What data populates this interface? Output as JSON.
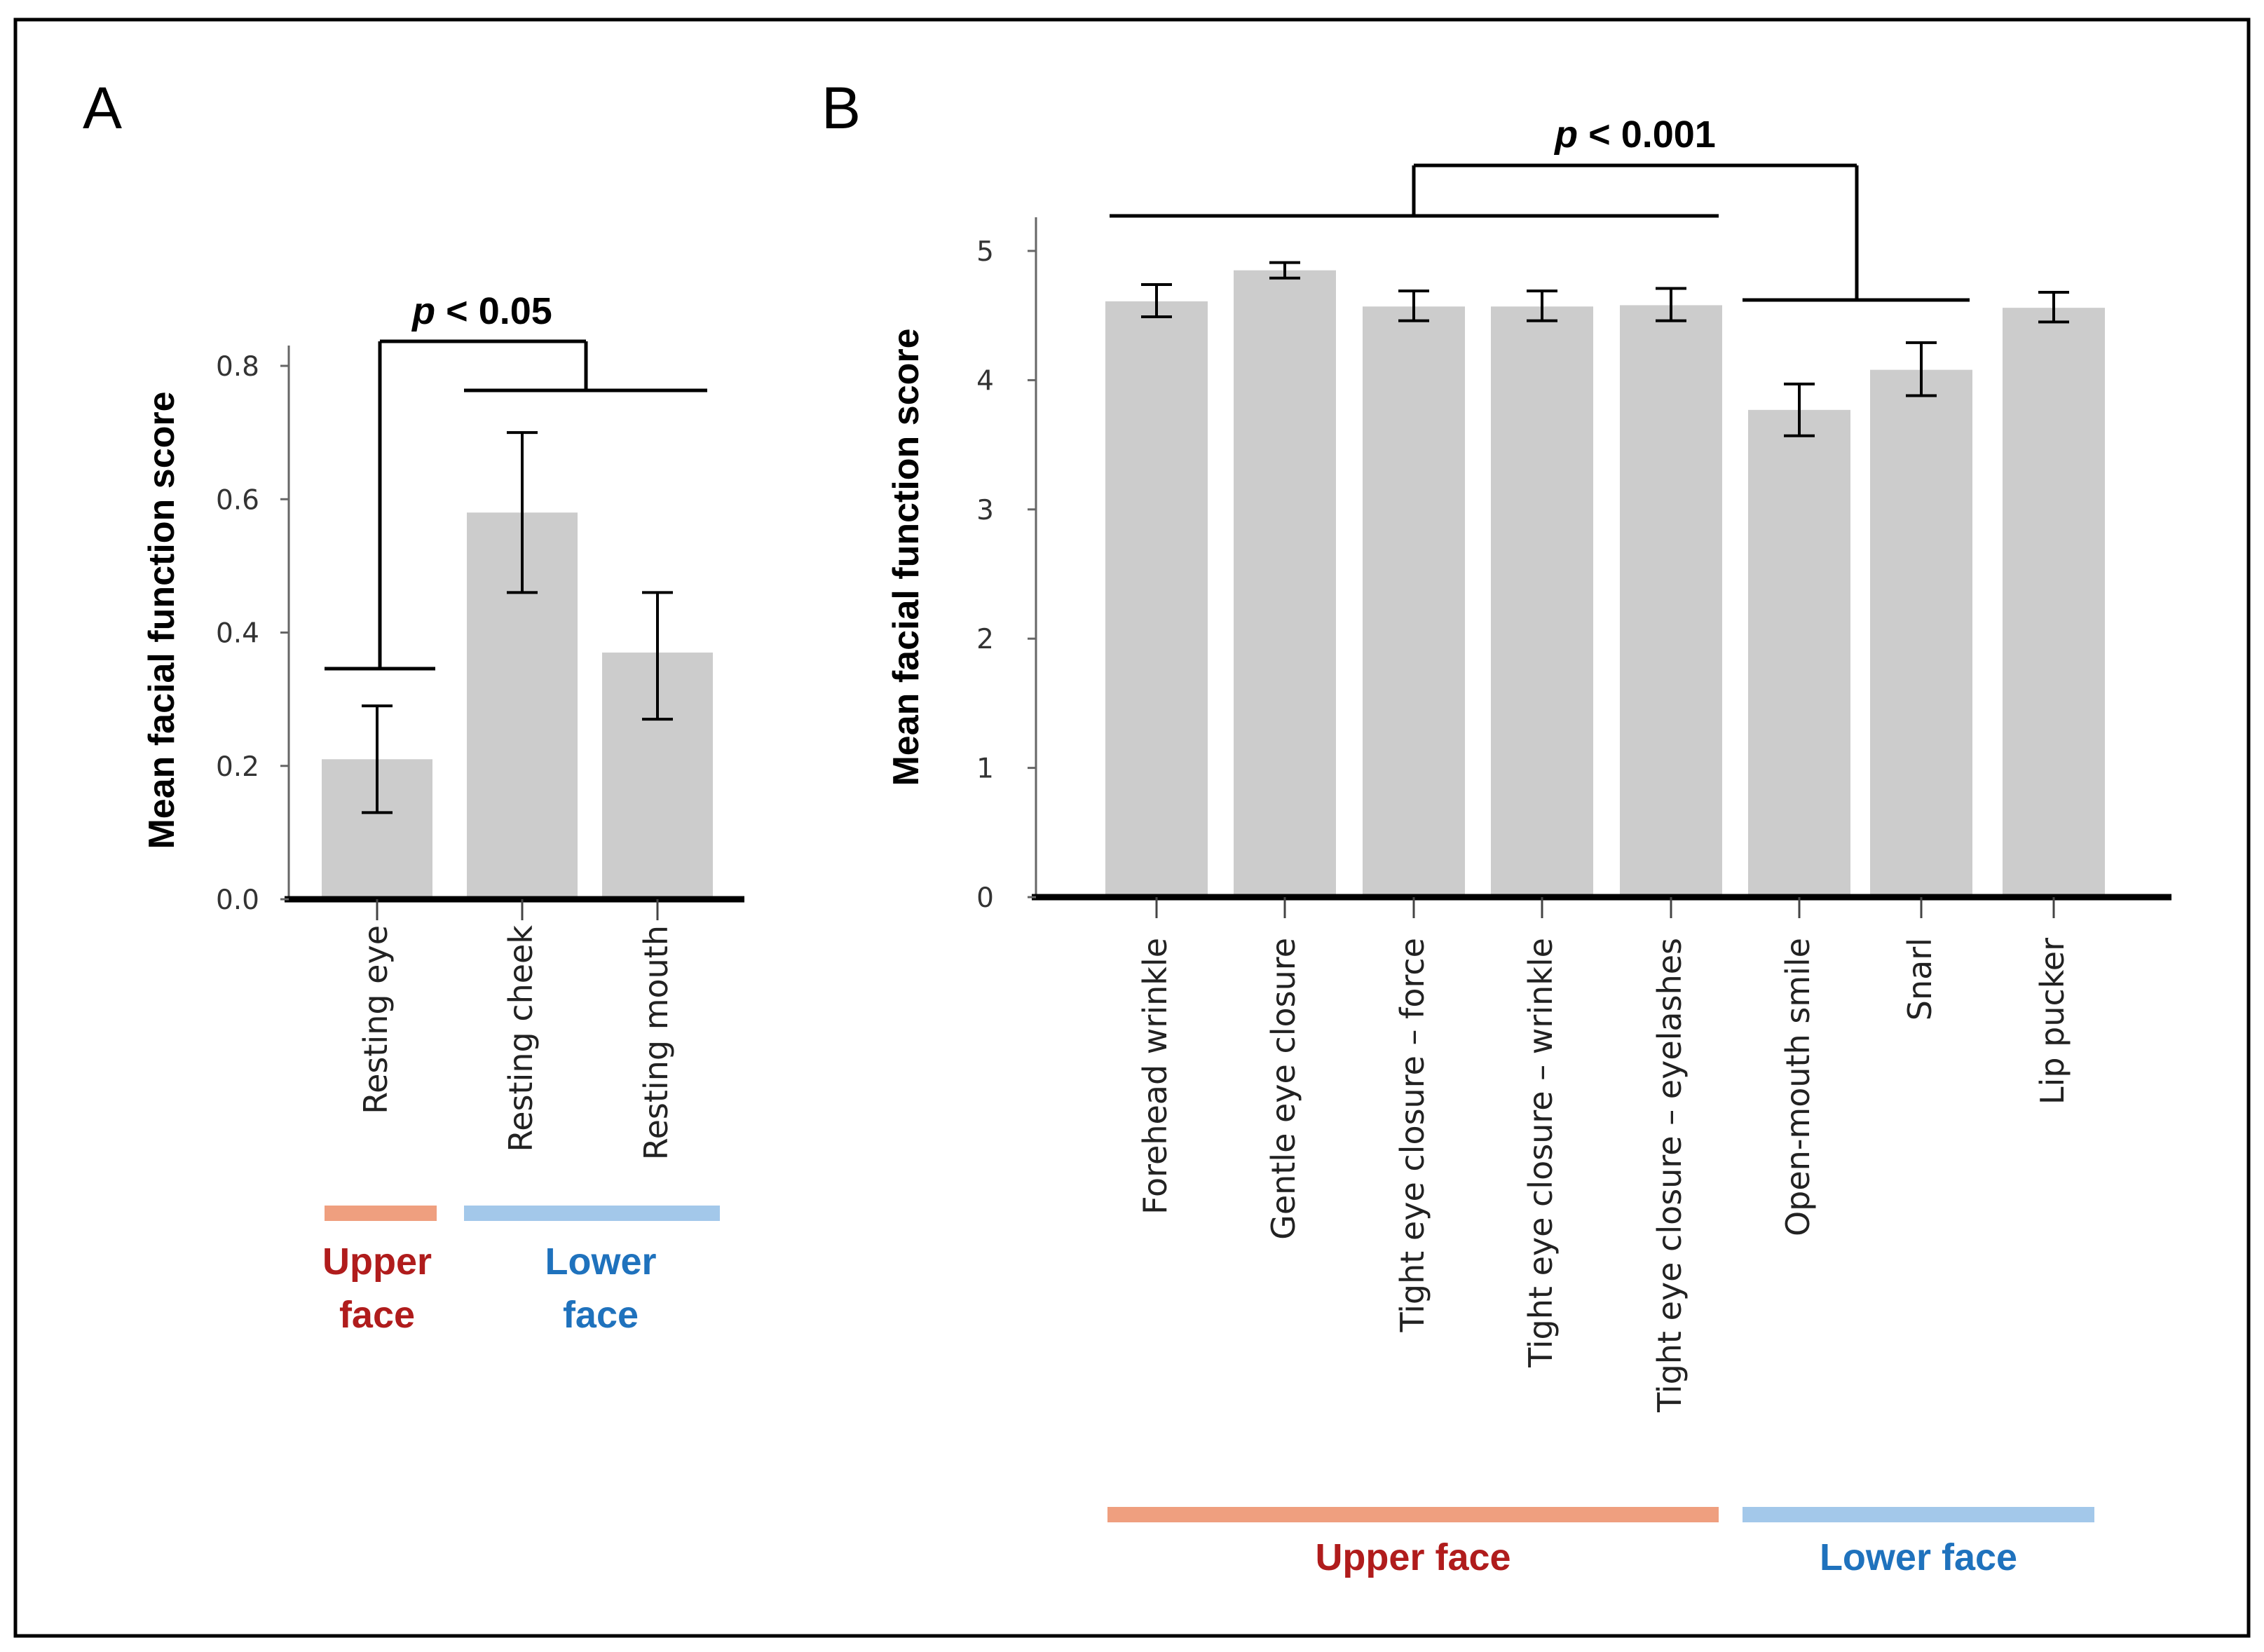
{
  "chart_data": [
    {
      "panel": "A",
      "type": "bar",
      "ylabel": "Mean facial function score",
      "ylim": [
        0,
        0.8
      ],
      "yticks": [
        "0.0",
        "0.2",
        "0.4",
        "0.6",
        "0.8"
      ],
      "categories": [
        "Resting eye",
        "Resting cheek",
        "Resting mouth"
      ],
      "values": [
        0.21,
        0.58,
        0.37
      ],
      "error_low": [
        0.13,
        0.46,
        0.27
      ],
      "error_high": [
        0.29,
        0.7,
        0.46
      ],
      "bar_color": "#cccccc",
      "significance": {
        "p_symbol": "p",
        "text": " < 0.05"
      },
      "regions": [
        {
          "label_line1": "Upper",
          "label_line2": "face",
          "color": "#ef9f7f",
          "text_color": "#b01c1c"
        },
        {
          "label_line1": "Lower",
          "label_line2": "face",
          "color": "#a3c8ea",
          "text_color": "#1f72bd"
        }
      ]
    },
    {
      "panel": "B",
      "type": "bar",
      "ylabel": "Mean facial function score",
      "ylim": [
        0,
        5
      ],
      "yticks": [
        "0",
        "1",
        "2",
        "3",
        "4",
        "5"
      ],
      "categories": [
        "Forehead wrinkle",
        "Gentle eye closure",
        "Tight eye closure – force",
        "Tight eye closure – wrinkle",
        "Tight eye closure – eyelashes",
        "Open-mouth smile",
        "Snarl",
        "Lip pucker"
      ],
      "values": [
        4.61,
        4.85,
        4.57,
        4.57,
        4.58,
        3.77,
        4.08,
        4.56
      ],
      "error_low": [
        4.49,
        4.79,
        4.46,
        4.46,
        4.46,
        3.57,
        3.88,
        4.45
      ],
      "error_high": [
        4.74,
        4.91,
        4.69,
        4.69,
        4.71,
        3.97,
        4.29,
        4.68
      ],
      "bar_color": "#cccccc",
      "significance": {
        "p_symbol": "p",
        "text": " < 0.001"
      },
      "regions": [
        {
          "label": "Upper face",
          "color": "#ef9f7f",
          "text_color": "#b01c1c"
        },
        {
          "label": "Lower face",
          "color": "#a3c8ea",
          "text_color": "#1f72bd"
        }
      ]
    }
  ]
}
